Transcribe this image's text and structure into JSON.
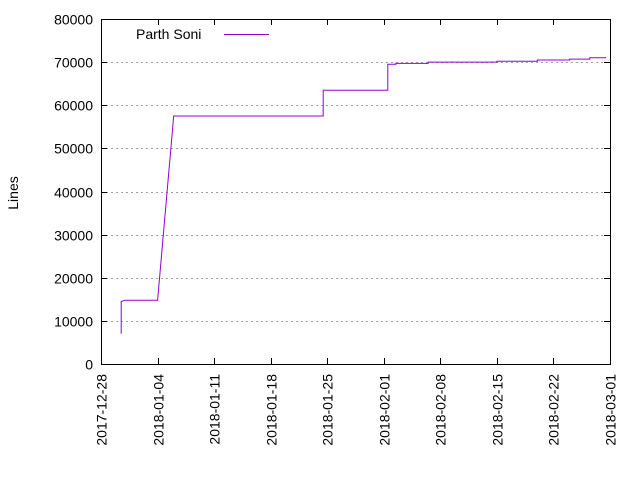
{
  "chart_data": {
    "type": "line",
    "title": "",
    "xlabel": "",
    "ylabel": "Lines",
    "ylim": [
      0,
      80000
    ],
    "yticks": [
      0,
      10000,
      20000,
      30000,
      40000,
      50000,
      60000,
      70000,
      80000
    ],
    "xlim": [
      "2017-12-28",
      "2018-03-01"
    ],
    "xticks": [
      "2017-12-28",
      "2018-01-04",
      "2018-01-11",
      "2018-01-18",
      "2018-01-25",
      "2018-02-01",
      "2018-02-08",
      "2018-02-15",
      "2018-02-22",
      "2018-03-01"
    ],
    "grid": "horizontal dotted",
    "legend": "top-left",
    "colors": {
      "series": "#9400d3",
      "grid": "#a0a0a0",
      "frame": "#000000"
    },
    "series": [
      {
        "name": "Parth Soni",
        "x": [
          "2017-12-30 12:00",
          "2017-12-30 12:00",
          "2017-12-31",
          "2018-01-04",
          "2018-01-06",
          "2018-01-24 12:00",
          "2018-01-24 12:00",
          "2018-02-01 12:00",
          "2018-02-01 12:00",
          "2018-02-02 12:00",
          "2018-02-02 12:00",
          "2018-02-06 12:00",
          "2018-02-06 12:00",
          "2018-02-15",
          "2018-02-15",
          "2018-02-20",
          "2018-02-20",
          "2018-02-24",
          "2018-02-24",
          "2018-02-26 12:00",
          "2018-02-26 12:00",
          "2018-02-28 12:00"
        ],
        "values": [
          7000,
          14500,
          14800,
          14800,
          57500,
          57500,
          63500,
          63500,
          69500,
          69500,
          69700,
          69700,
          70000,
          70000,
          70200,
          70200,
          70500,
          70500,
          70700,
          70700,
          71000,
          71000
        ]
      }
    ]
  }
}
